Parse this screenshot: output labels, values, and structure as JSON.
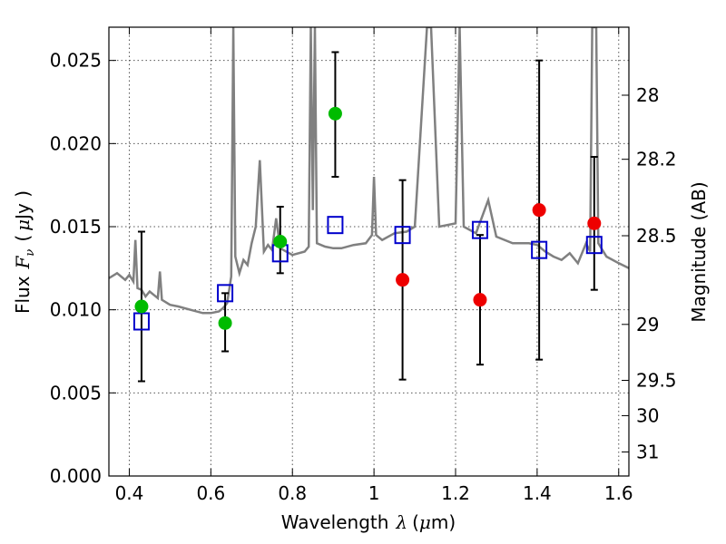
{
  "chart_data": {
    "type": "scatter",
    "xlabel": "Wavelength",
    "xlabel_symbol": "λ",
    "xlabel_unit_open": "(",
    "xlabel_unit_mu": "μ",
    "xlabel_unit_rest": "m)",
    "ylabel": "Flux",
    "ylabel_symbol": "F",
    "ylabel_sub": "ν",
    "ylabel_unit_open": "(",
    "ylabel_unit_mu": "μ",
    "ylabel_unit_rest": "Jy )",
    "y2label": "Magnitude (AB)",
    "xlim": [
      0.35,
      1.625
    ],
    "ylim": [
      0.0,
      0.027
    ],
    "grid": true,
    "x_ticks": [
      0.4,
      0.6,
      0.8,
      1.0,
      1.2,
      1.4,
      1.6
    ],
    "x_tick_labels": [
      "0.4",
      "0.6",
      "0.8",
      "1",
      "1.2",
      "1.4",
      "1.6"
    ],
    "y_ticks": [
      0.0,
      0.005,
      0.01,
      0.015,
      0.02,
      0.025
    ],
    "y_tick_labels": [
      "0.000",
      "0.005",
      "0.010",
      "0.015",
      "0.020",
      "0.025"
    ],
    "y2_ticks": [
      {
        "mag": 28,
        "label": "28"
      },
      {
        "mag": 28.2,
        "label": "28.2"
      },
      {
        "mag": 28.5,
        "label": "28.5"
      },
      {
        "mag": 29,
        "label": "29"
      },
      {
        "mag": 29.5,
        "label": "29.5"
      },
      {
        "mag": 30,
        "label": "30"
      },
      {
        "mag": 31,
        "label": "31"
      }
    ],
    "colors": {
      "sed": "#808080",
      "model": "#0000cc",
      "detection": "#00bb00",
      "nondetection": "#ee0000",
      "errorbar": "#000000",
      "grid": "#555555"
    },
    "sed_spectrum": {
      "x": [
        0.35,
        0.37,
        0.39,
        0.4,
        0.41,
        0.415,
        0.42,
        0.43,
        0.44,
        0.45,
        0.46,
        0.47,
        0.475,
        0.48,
        0.5,
        0.52,
        0.55,
        0.58,
        0.6,
        0.62,
        0.63,
        0.64,
        0.65,
        0.655,
        0.66,
        0.67,
        0.68,
        0.69,
        0.7,
        0.71,
        0.72,
        0.73,
        0.74,
        0.75,
        0.76,
        0.77,
        0.8,
        0.83,
        0.84,
        0.845,
        0.85,
        0.855,
        0.86,
        0.88,
        0.9,
        0.92,
        0.95,
        0.98,
        0.995,
        1.0,
        1.005,
        1.02,
        1.05,
        1.08,
        1.1,
        1.13,
        1.14,
        1.16,
        1.2,
        1.21,
        1.22,
        1.25,
        1.28,
        1.3,
        1.34,
        1.38,
        1.4,
        1.42,
        1.44,
        1.46,
        1.48,
        1.5,
        1.52,
        1.53,
        1.535,
        1.54,
        1.545,
        1.55,
        1.57,
        1.6,
        1.625
      ],
      "y": [
        0.0119,
        0.0122,
        0.0118,
        0.0121,
        0.0117,
        0.0142,
        0.0113,
        0.0112,
        0.0108,
        0.0111,
        0.0109,
        0.0107,
        0.0123,
        0.0106,
        0.0103,
        0.0102,
        0.01,
        0.0098,
        0.0098,
        0.0099,
        0.0101,
        0.0104,
        0.012,
        0.027,
        0.0132,
        0.0122,
        0.013,
        0.0127,
        0.014,
        0.015,
        0.019,
        0.0135,
        0.0139,
        0.0136,
        0.0155,
        0.0137,
        0.0133,
        0.0135,
        0.0138,
        0.027,
        0.016,
        0.027,
        0.014,
        0.0138,
        0.0137,
        0.0137,
        0.0139,
        0.014,
        0.0145,
        0.018,
        0.0145,
        0.0142,
        0.0146,
        0.0147,
        0.015,
        0.027,
        0.027,
        0.015,
        0.0152,
        0.027,
        0.015,
        0.0146,
        0.0166,
        0.0144,
        0.014,
        0.014,
        0.0139,
        0.0135,
        0.0132,
        0.013,
        0.0134,
        0.0128,
        0.014,
        0.0135,
        0.027,
        0.027,
        0.027,
        0.014,
        0.0132,
        0.0128,
        0.0125
      ]
    },
    "model_points": {
      "x": [
        0.43,
        0.635,
        0.77,
        0.905,
        1.07,
        1.26,
        1.405,
        1.54
      ],
      "y": [
        0.0093,
        0.011,
        0.0134,
        0.0151,
        0.0145,
        0.0148,
        0.0136,
        0.0139
      ]
    },
    "photometry": [
      {
        "x": 0.43,
        "y": 0.0102,
        "yerr_low": 0.0057,
        "yerr_high": 0.0147,
        "detected": true
      },
      {
        "x": 0.635,
        "y": 0.0092,
        "yerr_low": 0.0075,
        "yerr_high": 0.011,
        "detected": true
      },
      {
        "x": 0.77,
        "y": 0.0141,
        "yerr_low": 0.0122,
        "yerr_high": 0.0162,
        "detected": true
      },
      {
        "x": 0.905,
        "y": 0.0218,
        "yerr_low": 0.018,
        "yerr_high": 0.0255,
        "detected": true
      },
      {
        "x": 1.07,
        "y": 0.0118,
        "yerr_low": 0.0058,
        "yerr_high": 0.0178,
        "detected": false
      },
      {
        "x": 1.26,
        "y": 0.0106,
        "yerr_low": 0.0067,
        "yerr_high": 0.0145,
        "detected": false
      },
      {
        "x": 1.405,
        "y": 0.016,
        "yerr_low": 0.007,
        "yerr_high": 0.025,
        "detected": false
      },
      {
        "x": 1.54,
        "y": 0.0152,
        "yerr_low": 0.0112,
        "yerr_high": 0.0192,
        "detected": false
      }
    ]
  }
}
